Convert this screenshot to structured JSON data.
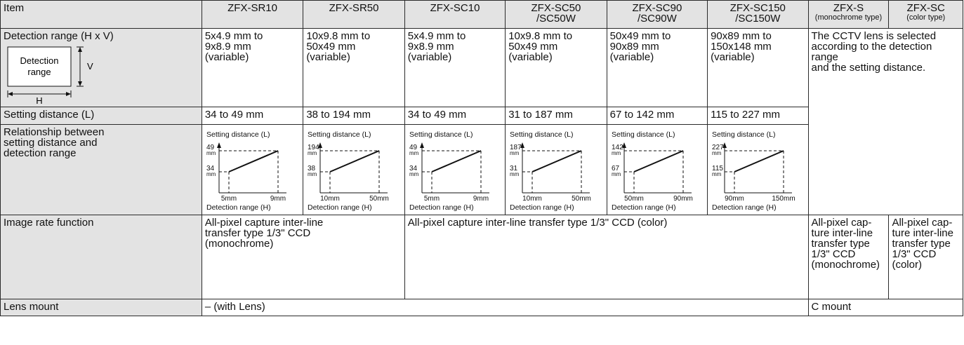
{
  "headers": {
    "item": "Item",
    "models": [
      {
        "l1": "ZFX-SR10",
        "l2": ""
      },
      {
        "l1": "ZFX-SR50",
        "l2": ""
      },
      {
        "l1": "ZFX-SC10",
        "l2": ""
      },
      {
        "l1": "ZFX-SC50",
        "l2": "/SC50W"
      },
      {
        "l1": "ZFX-SC90",
        "l2": "/SC90W"
      },
      {
        "l1": "ZFX-SC150",
        "l2": "/SC150W"
      }
    ],
    "zfx_s": {
      "l1": "ZFX-S",
      "sub": "(monochrome type)"
    },
    "zfx_sc": {
      "l1": "ZFX-SC",
      "sub": "(color type)"
    }
  },
  "rows": {
    "detection_range": {
      "label": "Detection range (H x V)",
      "diagram": {
        "box_label_1": "Detection",
        "box_label_2": "range",
        "v": "V",
        "h": "H"
      },
      "values": [
        [
          "5x4.9 mm to",
          "9x8.9 mm",
          "(variable)"
        ],
        [
          "10x9.8 mm to",
          "50x49 mm",
          "(variable)"
        ],
        [
          "5x4.9 mm to",
          "9x8.9 mm",
          "(variable)"
        ],
        [
          "10x9.8 mm to",
          "50x49 mm",
          "(variable)"
        ],
        [
          "50x49 mm to",
          "90x89 mm",
          "(variable)"
        ],
        [
          "90x89 mm to",
          "150x148 mm",
          "(variable)"
        ]
      ],
      "cctv": [
        "The CCTV lens is selected",
        "according to the detection range",
        "and the setting distance."
      ]
    },
    "setting_distance": {
      "label": "Setting distance (L)",
      "values": [
        "34 to 49 mm",
        "38 to 194 mm",
        "34 to 49 mm",
        "31 to 187 mm",
        "67 to 142 mm",
        "115 to 227 mm"
      ]
    },
    "relationship": {
      "label_lines": [
        "Relationship between",
        "setting distance and",
        "detection range"
      ]
    },
    "image_rate": {
      "label": "Image rate function",
      "mono": [
        "All-pixel capture inter-line",
        "transfer type 1/3\" CCD",
        "(monochrome)"
      ],
      "color": "All-pixel capture inter-line transfer type 1/3\" CCD (color)",
      "s_mono": [
        "All-pixel cap-",
        "ture inter-line",
        "transfer type",
        "1/3\" CCD",
        "(monochrome)"
      ],
      "sc_color": [
        "All-pixel cap-",
        "ture inter-line",
        "transfer type",
        "1/3\" CCD",
        "(color)"
      ]
    },
    "lens_mount": {
      "label": "Lens mount",
      "with_lens": "– (with Lens)",
      "c_mount": "C mount"
    }
  },
  "chart_data": [
    {
      "type": "line",
      "ylabel": "Setting distance (L)",
      "xlabel": "Detection range (H)",
      "x": [
        5,
        9
      ],
      "y": [
        34,
        49
      ],
      "x_ticks": [
        "5mm",
        "9mm"
      ],
      "y_ticks": [
        "34",
        "49"
      ],
      "y_unit": "mm"
    },
    {
      "type": "line",
      "ylabel": "Setting distance (L)",
      "xlabel": "Detection range (H)",
      "x": [
        10,
        50
      ],
      "y": [
        38,
        194
      ],
      "x_ticks": [
        "10mm",
        "50mm"
      ],
      "y_ticks": [
        "38",
        "194"
      ],
      "y_unit": "mm"
    },
    {
      "type": "line",
      "ylabel": "Setting distance (L)",
      "xlabel": "Detection range (H)",
      "x": [
        5,
        9
      ],
      "y": [
        34,
        49
      ],
      "x_ticks": [
        "5mm",
        "9mm"
      ],
      "y_ticks": [
        "34",
        "49"
      ],
      "y_unit": "mm"
    },
    {
      "type": "line",
      "ylabel": "Setting distance (L)",
      "xlabel": "Detection range (H)",
      "x": [
        10,
        50
      ],
      "y": [
        31,
        187
      ],
      "x_ticks": [
        "10mm",
        "50mm"
      ],
      "y_ticks": [
        "31",
        "187"
      ],
      "y_unit": "mm"
    },
    {
      "type": "line",
      "ylabel": "Setting distance (L)",
      "xlabel": "Detection range (H)",
      "x": [
        50,
        90
      ],
      "y": [
        67,
        142
      ],
      "x_ticks": [
        "50mm",
        "90mm"
      ],
      "y_ticks": [
        "67",
        "142"
      ],
      "y_unit": "mm"
    },
    {
      "type": "line",
      "ylabel": "Setting distance (L)",
      "xlabel": "Detection range (H)",
      "x": [
        90,
        150
      ],
      "y": [
        115,
        227
      ],
      "x_ticks": [
        "90mm",
        "150mm"
      ],
      "y_ticks": [
        "115",
        "227"
      ],
      "y_unit": "mm"
    }
  ]
}
